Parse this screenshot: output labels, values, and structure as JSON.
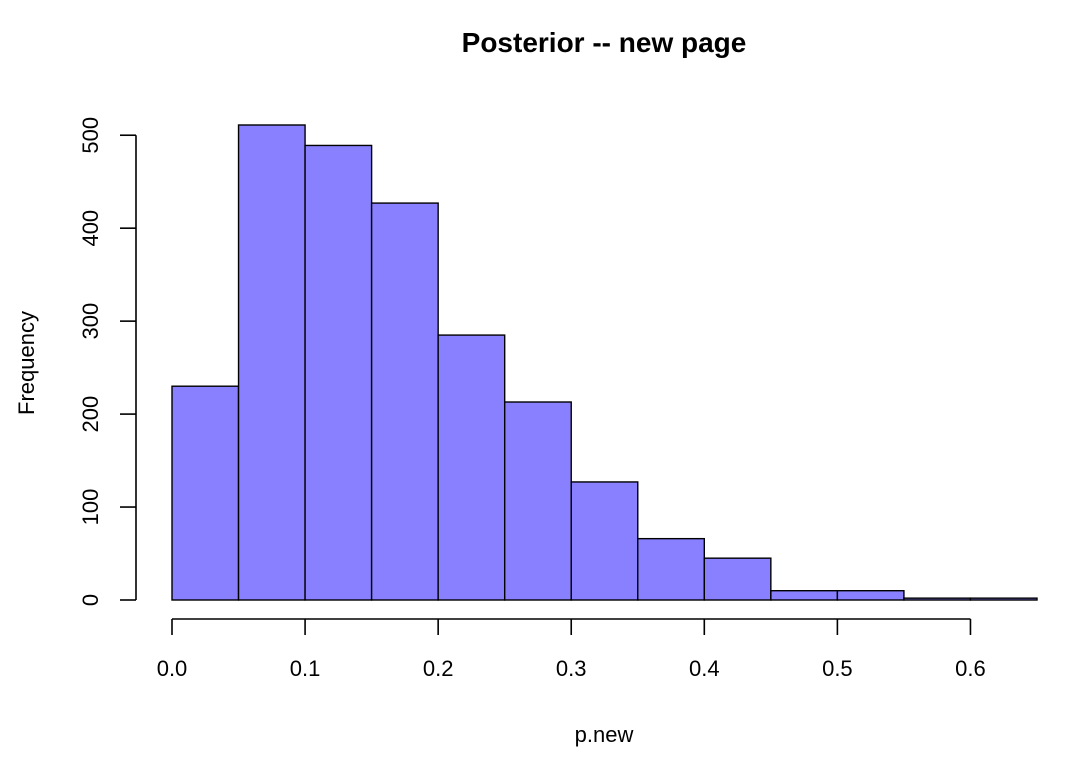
{
  "chart_data": {
    "type": "bar",
    "title": "Posterior -- new page",
    "xlabel": "p.new",
    "ylabel": "Frequency",
    "bar_color": "#8880FF",
    "bins": [
      {
        "x0": 0.0,
        "x1": 0.05,
        "value": 230
      },
      {
        "x0": 0.05,
        "x1": 0.1,
        "value": 511
      },
      {
        "x0": 0.1,
        "x1": 0.15,
        "value": 489
      },
      {
        "x0": 0.15,
        "x1": 0.2,
        "value": 427
      },
      {
        "x0": 0.2,
        "x1": 0.25,
        "value": 285
      },
      {
        "x0": 0.25,
        "x1": 0.3,
        "value": 213
      },
      {
        "x0": 0.3,
        "x1": 0.35,
        "value": 127
      },
      {
        "x0": 0.35,
        "x1": 0.4,
        "value": 66
      },
      {
        "x0": 0.4,
        "x1": 0.45,
        "value": 45
      },
      {
        "x0": 0.45,
        "x1": 0.5,
        "value": 10
      },
      {
        "x0": 0.5,
        "x1": 0.55,
        "value": 10
      },
      {
        "x0": 0.55,
        "x1": 0.6,
        "value": 2
      },
      {
        "x0": 0.6,
        "x1": 0.65,
        "value": 2
      }
    ],
    "xlim": [
      0,
      0.65
    ],
    "ylim": [
      0,
      511
    ],
    "x_ticks": [
      0.0,
      0.1,
      0.2,
      0.3,
      0.4,
      0.5,
      0.6
    ],
    "x_tick_labels": [
      "0.0",
      "0.1",
      "0.2",
      "0.3",
      "0.4",
      "0.5",
      "0.6"
    ],
    "y_ticks": [
      0,
      100,
      200,
      300,
      400,
      500
    ],
    "y_tick_labels": [
      "0",
      "100",
      "200",
      "300",
      "400",
      "500"
    ],
    "grid": false
  }
}
